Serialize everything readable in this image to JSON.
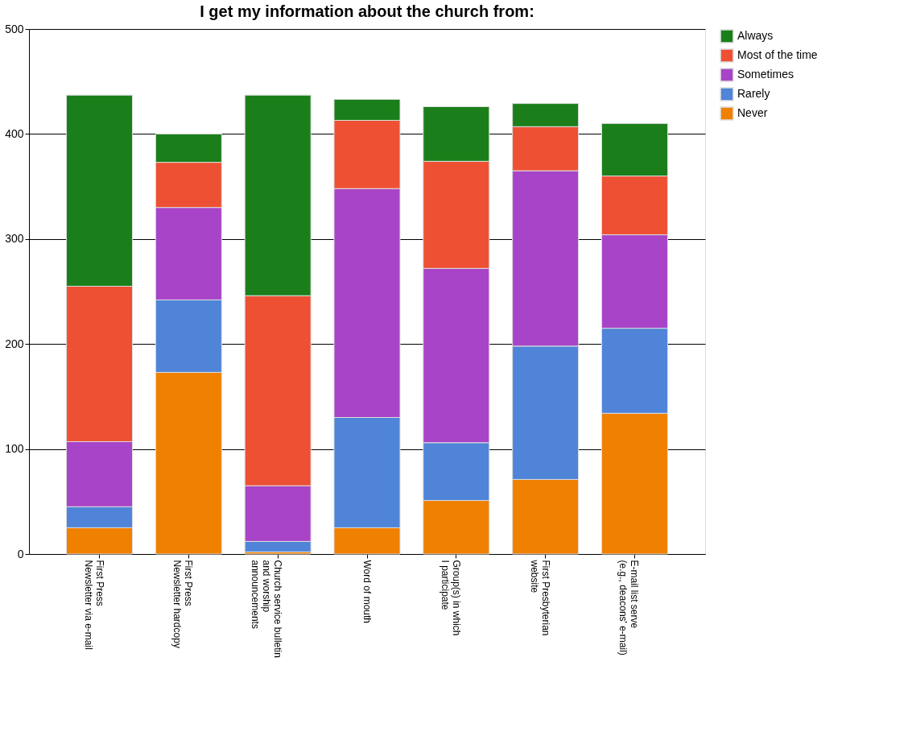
{
  "chart_data": {
    "type": "bar",
    "title": "I get my information about the church from:",
    "categories": [
      "First Press\nNewsletter via e-mail",
      "First Press\nNewsletter hardcopy",
      "Church service bulletin\nand worship\nannouncements",
      "Word of mouth",
      "Group(s) in which\nI participate",
      "First Presbyterian\nwebsite",
      "E-mail list serve\n(e.g., deacons' e-mail)"
    ],
    "stacked": true,
    "series": [
      {
        "name": "Never",
        "color": "#f08000",
        "values": [
          25,
          173,
          2,
          25,
          51,
          71,
          134
        ]
      },
      {
        "name": "Rarely",
        "color": "#4f84d8",
        "values": [
          20,
          69,
          10,
          105,
          55,
          127,
          81
        ]
      },
      {
        "name": "Sometimes",
        "color": "#a844c8",
        "values": [
          62,
          88,
          53,
          218,
          166,
          167,
          89
        ]
      },
      {
        "name": "Most of the time",
        "color": "#ee5034",
        "values": [
          148,
          43,
          181,
          65,
          102,
          42,
          56
        ]
      },
      {
        "name": "Always",
        "color": "#1a7f1a",
        "values": [
          182,
          27,
          191,
          20,
          52,
          22,
          50
        ]
      }
    ],
    "ylim": [
      0,
      500
    ],
    "yticks": [
      0,
      100,
      200,
      300,
      400,
      500
    ],
    "grid": "y",
    "legend": "right"
  }
}
